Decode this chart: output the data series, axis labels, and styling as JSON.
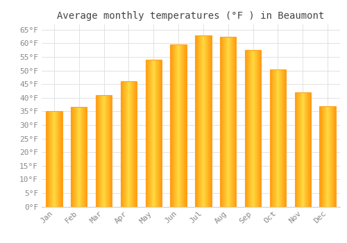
{
  "title": "Average monthly temperatures (°F ) in Beaumont",
  "months": [
    "Jan",
    "Feb",
    "Mar",
    "Apr",
    "May",
    "Jun",
    "Jul",
    "Aug",
    "Sep",
    "Oct",
    "Nov",
    "Dec"
  ],
  "values": [
    35,
    36.5,
    41,
    46,
    54,
    59.5,
    63,
    62.5,
    57.5,
    50.5,
    42,
    37
  ],
  "bar_color_center": "#FFD060",
  "bar_color_edge": "#FFA500",
  "background_color": "#ffffff",
  "grid_color": "#dddddd",
  "yticks": [
    0,
    5,
    10,
    15,
    20,
    25,
    30,
    35,
    40,
    45,
    50,
    55,
    60,
    65
  ],
  "ylim": [
    0,
    67
  ],
  "title_fontsize": 10,
  "tick_fontsize": 8,
  "tick_font_family": "monospace"
}
